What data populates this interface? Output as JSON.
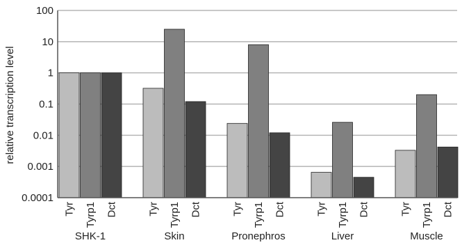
{
  "chart_data": {
    "type": "bar",
    "ylabel": "relative transcription level",
    "xlabel": "",
    "yscale": "log",
    "ylim": [
      0.0001,
      100
    ],
    "yticks": [
      "0.0001",
      "0.001",
      "0.01",
      "0.1",
      "1",
      "10",
      "100"
    ],
    "grid": true,
    "categories": [
      "SHK-1",
      "Skin",
      "Pronephros",
      "Liver",
      "Muscle"
    ],
    "bar_labels": [
      "Tyr",
      "Tyrp1",
      "Dct"
    ],
    "series": [
      {
        "name": "Tyr",
        "color": "#bcbcbc",
        "values": [
          1,
          0.32,
          0.024,
          0.00065,
          0.0033
        ]
      },
      {
        "name": "Tyrp1",
        "color": "#808080",
        "values": [
          1,
          25,
          8,
          0.026,
          0.2
        ]
      },
      {
        "name": "Dct",
        "color": "#444444",
        "values": [
          1,
          0.12,
          0.012,
          0.00045,
          0.0042
        ]
      }
    ]
  }
}
